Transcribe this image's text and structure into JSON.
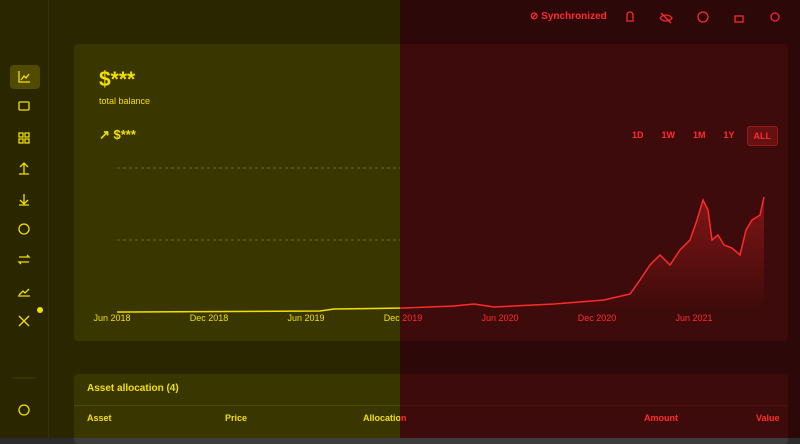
{
  "header": {
    "status": "Synchronized"
  },
  "balance": {
    "amount": "$***",
    "caption": "total balance",
    "change": "$***"
  },
  "ranges": [
    "1D",
    "1W",
    "1M",
    "1Y",
    "ALL"
  ],
  "chart": {
    "x_labels": [
      "Jun 2018",
      "Dec 2018",
      "Jun 2019",
      "Dec 2019",
      "Jun 2020",
      "Dec 2020",
      "Jun 2021"
    ]
  },
  "allocation": {
    "title": "Asset allocation (4)",
    "columns": [
      "Asset",
      "Price",
      "Allocation",
      "Amount",
      "Value"
    ]
  }
}
